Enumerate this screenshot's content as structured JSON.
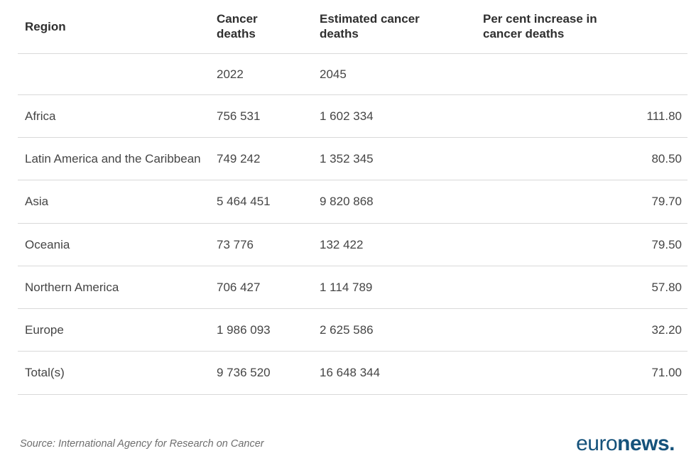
{
  "table": {
    "headers": [
      "Region",
      "Cancer deaths",
      "Estimated cancer deaths",
      "Per cent increase in cancer deaths"
    ],
    "subheaders": [
      "",
      "2022",
      "2045",
      ""
    ],
    "rows": [
      {
        "region": "Africa",
        "deaths_2022": "756 531",
        "deaths_2045": "1 602 334",
        "pct_increase": "111.80"
      },
      {
        "region": "Latin America and the Caribbean",
        "deaths_2022": "749 242",
        "deaths_2045": "1 352 345",
        "pct_increase": "80.50"
      },
      {
        "region": "Asia",
        "deaths_2022": "5 464 451",
        "deaths_2045": "9 820 868",
        "pct_increase": "79.70"
      },
      {
        "region": "Oceania",
        "deaths_2022": "73 776",
        "deaths_2045": "132 422",
        "pct_increase": "79.50"
      },
      {
        "region": "Northern America",
        "deaths_2022": "706 427",
        "deaths_2045": "1 114 789",
        "pct_increase": "57.80"
      },
      {
        "region": "Europe",
        "deaths_2022": "1 986 093",
        "deaths_2045": "2 625 586",
        "pct_increase": "32.20"
      },
      {
        "region": "Total(s)",
        "deaths_2022": "9 736 520",
        "deaths_2045": "16 648 344",
        "pct_increase": "71.00"
      }
    ]
  },
  "footer": {
    "source": "Source: International Agency for Research on Cancer",
    "logo_regular": "euro",
    "logo_bold": "news."
  },
  "colors": {
    "header_text": "#2f2f2f",
    "body_text": "#454545",
    "divider": "#d9d9d9",
    "source_text": "#6e6e6e",
    "logo_blue": "#15527b"
  },
  "chart_data": {
    "type": "table",
    "title": "",
    "columns": [
      "Region",
      "Cancer deaths 2022",
      "Estimated cancer deaths 2045",
      "Per cent increase in cancer deaths"
    ],
    "rows": [
      [
        "Africa",
        756531,
        1602334,
        111.8
      ],
      [
        "Latin America and the Caribbean",
        749242,
        1352345,
        80.5
      ],
      [
        "Asia",
        5464451,
        9820868,
        79.7
      ],
      [
        "Oceania",
        73776,
        132422,
        79.5
      ],
      [
        "Northern America",
        706427,
        1114789,
        57.8
      ],
      [
        "Europe",
        1986093,
        2625586,
        32.2
      ],
      [
        "Total(s)",
        9736520,
        16648344,
        71.0
      ]
    ],
    "source": "Source: International Agency for Research on Cancer",
    "legend_position": "none",
    "grid": "horizontal-row-dividers"
  }
}
